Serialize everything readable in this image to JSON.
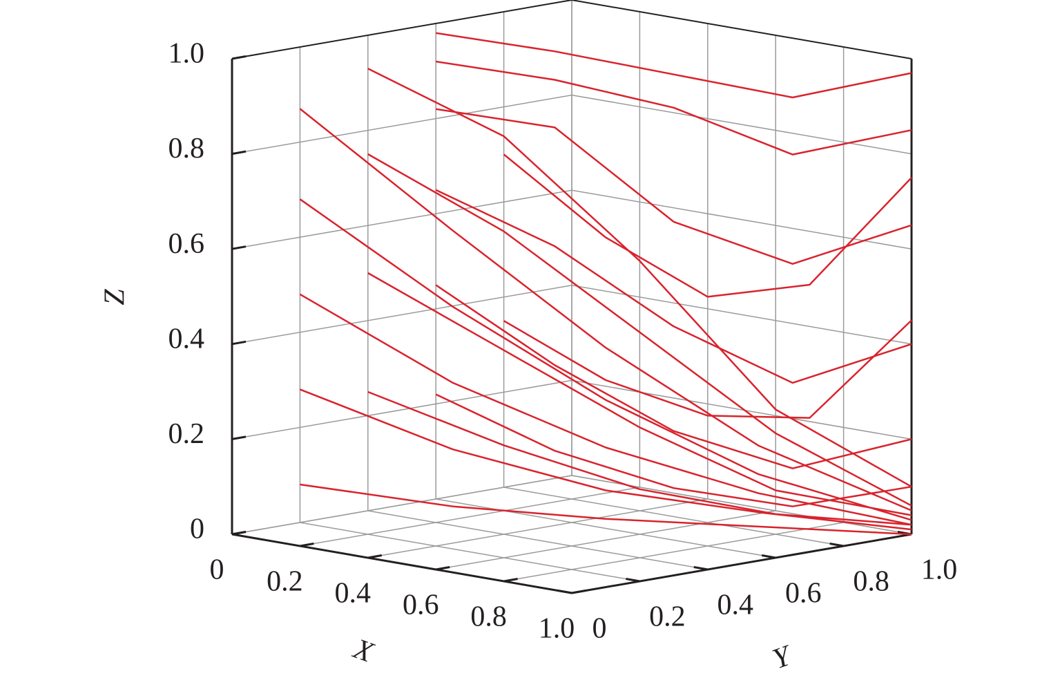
{
  "chart_data": {
    "type": "line3d",
    "xlabel": "X",
    "ylabel": "Y",
    "zlabel": "Z",
    "xlim": [
      0,
      1
    ],
    "ylim": [
      0,
      1
    ],
    "zlim": [
      0,
      1
    ],
    "xticks": [
      0,
      0.2,
      0.4,
      0.6,
      0.8,
      {
        "value": 1,
        "label": "1.0"
      }
    ],
    "yticks": [
      0,
      0.2,
      0.4,
      0.6,
      0.8,
      {
        "value": 1,
        "label": "1.0"
      }
    ],
    "zticks": [
      0,
      0.2,
      0.4,
      0.6,
      0.8,
      {
        "value": 1,
        "label": "1.0"
      }
    ],
    "grid": true,
    "color": "#d9232d",
    "series": [
      {
        "x": [
          0,
          0.25,
          0.5,
          0.75,
          1
        ],
        "y": [
          0.2,
          0.4,
          0.6,
          0.8,
          1
        ],
        "z": [
          0.87,
          0.62,
          0.38,
          0.18,
          0.05
        ]
      },
      {
        "x": [
          0,
          0.25,
          0.5,
          0.75,
          1
        ],
        "y": [
          0.2,
          0.4,
          0.6,
          0.8,
          1
        ],
        "z": [
          0.68,
          0.46,
          0.27,
          0.12,
          0.03
        ]
      },
      {
        "x": [
          0,
          0.25,
          0.5,
          0.75,
          1
        ],
        "y": [
          0.2,
          0.4,
          0.6,
          0.8,
          1
        ],
        "z": [
          0.48,
          0.3,
          0.17,
          0.08,
          0.02
        ]
      },
      {
        "x": [
          0,
          0.25,
          0.5,
          0.75,
          1
        ],
        "y": [
          0.2,
          0.4,
          0.6,
          0.8,
          1
        ],
        "z": [
          0.28,
          0.16,
          0.08,
          0.04,
          0.01
        ]
      },
      {
        "x": [
          0,
          0.25,
          0.5,
          0.75,
          1
        ],
        "y": [
          0.2,
          0.4,
          0.6,
          0.8,
          1
        ],
        "z": [
          0.08,
          0.04,
          0.02,
          0.01,
          0
        ]
      },
      {
        "x": [
          0,
          0.25,
          0.5,
          0.75,
          1
        ],
        "y": [
          0.4,
          0.55,
          0.7,
          0.85,
          1
        ],
        "z": [
          0.93,
          0.8,
          0.55,
          0.25,
          0.1
        ]
      },
      {
        "x": [
          0,
          0.25,
          0.5,
          0.75,
          1
        ],
        "y": [
          0.4,
          0.55,
          0.7,
          0.85,
          1
        ],
        "z": [
          0.75,
          0.6,
          0.4,
          0.2,
          0.06
        ]
      },
      {
        "x": [
          0,
          0.25,
          0.5,
          0.75,
          1
        ],
        "y": [
          0.4,
          0.55,
          0.7,
          0.85,
          1
        ],
        "z": [
          0.5,
          0.35,
          0.2,
          0.08,
          0.04
        ]
      },
      {
        "x": [
          0,
          0.25,
          0.5,
          0.75,
          1
        ],
        "y": [
          0.4,
          0.55,
          0.7,
          0.85,
          1
        ],
        "z": [
          0.25,
          0.15,
          0.07,
          0.03,
          0.02
        ]
      },
      {
        "x": [
          0,
          0.25,
          0.5,
          0.75,
          1
        ],
        "y": [
          0.6,
          0.7,
          0.8,
          0.9,
          1
        ],
        "z": [
          0.98,
          0.96,
          0.93,
          0.9,
          0.97
        ]
      },
      {
        "x": [
          0,
          0.25,
          0.5,
          0.75,
          1
        ],
        "y": [
          0.6,
          0.7,
          0.8,
          0.9,
          1
        ],
        "z": [
          0.92,
          0.9,
          0.86,
          0.78,
          0.85
        ]
      },
      {
        "x": [
          0,
          0.25,
          0.5,
          0.75,
          1
        ],
        "y": [
          0.6,
          0.7,
          0.8,
          0.9,
          1
        ],
        "z": [
          0.82,
          0.8,
          0.62,
          0.55,
          0.65
        ]
      },
      {
        "x": [
          0,
          0.25,
          0.5,
          0.75,
          1
        ],
        "y": [
          0.6,
          0.7,
          0.8,
          0.9,
          1
        ],
        "z": [
          0.65,
          0.55,
          0.4,
          0.3,
          0.4
        ]
      },
      {
        "x": [
          0,
          0.25,
          0.5,
          0.75,
          1
        ],
        "y": [
          0.6,
          0.7,
          0.8,
          0.9,
          1
        ],
        "z": [
          0.45,
          0.3,
          0.18,
          0.12,
          0.2
        ]
      },
      {
        "x": [
          0,
          0.25,
          0.5,
          0.75,
          1
        ],
        "y": [
          0.6,
          0.7,
          0.8,
          0.9,
          1
        ],
        "z": [
          0.22,
          0.12,
          0.06,
          0.04,
          0.1
        ]
      },
      {
        "x": [
          0,
          0.25,
          0.5,
          0.75,
          1
        ],
        "y": [
          0.8,
          0.85,
          0.9,
          0.95,
          1
        ],
        "z": [
          0.7,
          0.55,
          0.45,
          0.5,
          0.75
        ]
      },
      {
        "x": [
          0,
          0.25,
          0.5,
          0.75,
          1
        ],
        "y": [
          0.8,
          0.85,
          0.9,
          0.95,
          1
        ],
        "z": [
          0.35,
          0.25,
          0.2,
          0.22,
          0.45
        ]
      }
    ]
  }
}
